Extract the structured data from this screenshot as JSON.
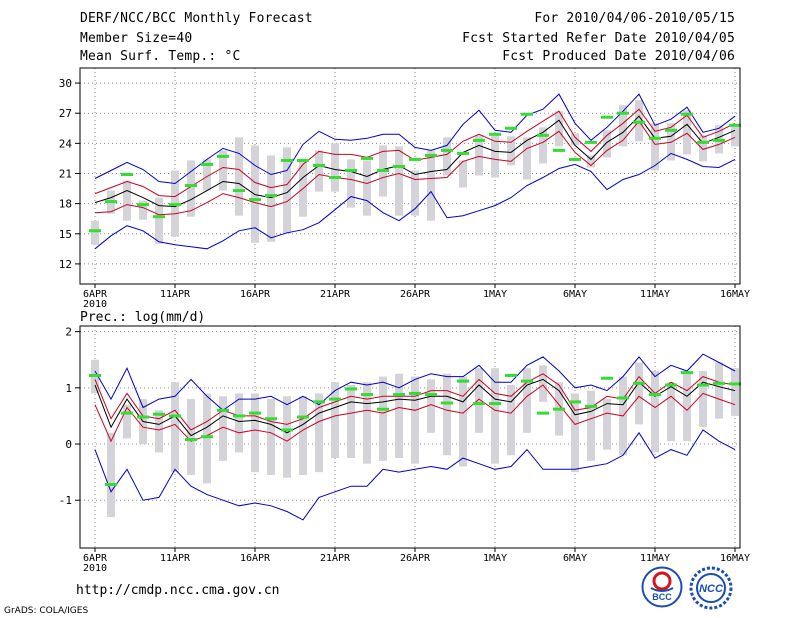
{
  "header": {
    "title": "DERF/NCC/BCC Monthly Forecast",
    "member_size": "Member Size=40",
    "variable1": "Mean Surf. Temp.: °C",
    "period": "For 2010/04/06-2010/05/15",
    "start_date": "Fcst Started Refer Date 2010/04/05",
    "produced_date": "Fcst Produced Date 2010/04/06"
  },
  "footer": {
    "url": "http://cmdp.ncc.cma.gov.cn",
    "grads": "GrADS: COLA/IGES",
    "logo1_text": "BCC",
    "logo2_text": "NCC"
  },
  "colors": {
    "envelope": "#0000cc",
    "spread": "#cc0022",
    "mean": "#000000",
    "box": "#d4d4d8",
    "median": "#33dd33",
    "grid": "#888888"
  },
  "chart_data": [
    {
      "type": "line",
      "title": "Mean Surf. Temp.: °C",
      "x_ticks": [
        "6APR",
        "11APR",
        "16APR",
        "21APR",
        "26APR",
        "1MAY",
        "6MAY",
        "11MAY",
        "16MAY"
      ],
      "x_tick_year": "2010",
      "ylim": [
        10,
        31.5
      ],
      "y_ticks": [
        12,
        15,
        18,
        21,
        24,
        27,
        30
      ],
      "days": 41,
      "series": [
        {
          "name": "max",
          "values": [
            20.5,
            21.3,
            22.1,
            21.4,
            20.2,
            20,
            21.2,
            22.4,
            23.5,
            23,
            21.8,
            20.9,
            21.3,
            23.9,
            25.2,
            24.4,
            24.3,
            24.5,
            24.9,
            24.9,
            23.6,
            23.3,
            23.8,
            25.9,
            27.3,
            25.3,
            25.1,
            26.8,
            27.4,
            28.9,
            26,
            24.3,
            25.6,
            27.2,
            28.9,
            25.8,
            26.4,
            27.6,
            25.1,
            25.5,
            26.7
          ]
        },
        {
          "name": "upper",
          "values": [
            19,
            19.6,
            20.2,
            19.7,
            18.8,
            18.7,
            19.7,
            20.7,
            21.6,
            21.4,
            20.1,
            19.6,
            19.9,
            21.9,
            23.2,
            22.9,
            22.9,
            22.6,
            23.2,
            23.3,
            22.3,
            22.6,
            22.9,
            24.2,
            24.9,
            24.2,
            24.1,
            25.2,
            26.2,
            27.2,
            24.6,
            23.2,
            24.8,
            26,
            27.4,
            25.2,
            25.6,
            26.8,
            24.6,
            25.2,
            26
          ]
        },
        {
          "name": "mean",
          "values": [
            18.1,
            18.6,
            19.3,
            18.6,
            17.8,
            17.7,
            18.4,
            19.3,
            20.2,
            20,
            18.9,
            18.6,
            19.1,
            20.6,
            21.8,
            21.4,
            21.2,
            20.7,
            21.4,
            21.8,
            20.9,
            21.2,
            21.4,
            23.1,
            23.8,
            23.2,
            23.1,
            24.3,
            25.1,
            26.3,
            23.8,
            22.4,
            24.1,
            25.1,
            26.7,
            24.5,
            24.7,
            25.9,
            24,
            24.6,
            25.3
          ]
        },
        {
          "name": "lower",
          "values": [
            17.1,
            17.2,
            17.9,
            17.6,
            16.9,
            17,
            17.3,
            18.1,
            19,
            18.6,
            18.1,
            17.7,
            18.2,
            19.5,
            20.9,
            20.6,
            20.4,
            20,
            20.6,
            21,
            20.4,
            20.5,
            20.6,
            22.2,
            22.7,
            22.4,
            22.2,
            23.5,
            24.1,
            25.2,
            23.1,
            21.8,
            23.3,
            24.3,
            26.2,
            23.9,
            24.1,
            25,
            23.4,
            23.9,
            24.6
          ]
        },
        {
          "name": "min",
          "values": [
            13.5,
            14.8,
            15.8,
            15.3,
            14.2,
            13.9,
            13.7,
            13.5,
            14.3,
            15.3,
            15.6,
            14.6,
            15.1,
            15.4,
            16.1,
            17.4,
            18.7,
            18.3,
            17.1,
            16.3,
            17.5,
            19.2,
            16.6,
            16.8,
            17.3,
            17.8,
            18.6,
            19.8,
            20.6,
            21.5,
            21.9,
            21.2,
            19.4,
            20.4,
            20.9,
            21.8,
            23,
            22.4,
            21.7,
            21.6,
            22.4
          ]
        },
        {
          "name": "box_top",
          "values": [
            16.3,
            19.3,
            20.3,
            18.3,
            18.6,
            21.3,
            22.3,
            22.4,
            23.3,
            24.6,
            23.8,
            22.8,
            23.6,
            22.2,
            23.3,
            24,
            22.4,
            22.3,
            23.8,
            23.7,
            21.3,
            23.3,
            24.6,
            22.3,
            24.8,
            24.8,
            24.7,
            24.6,
            25.6,
            27.2,
            25,
            22.8,
            25.3,
            27.8,
            28.3,
            26,
            26,
            27.3,
            24.8,
            25.8,
            25.9
          ]
        },
        {
          "name": "box_bottom",
          "values": [
            13.9,
            17,
            16.3,
            16.4,
            14,
            14.7,
            16.7,
            19.3,
            19.3,
            16.8,
            14.1,
            14.2,
            15,
            16.7,
            19.2,
            19.2,
            17.6,
            16.8,
            18.7,
            16.8,
            16.8,
            16.3,
            20.8,
            19.6,
            20.8,
            20.6,
            21.8,
            20.4,
            22,
            23.7,
            23.8,
            21.6,
            22.6,
            23.7,
            24.2,
            21.3,
            22.3,
            22.9,
            22.2,
            23,
            23.7
          ]
        },
        {
          "name": "median",
          "values": [
            15.3,
            18.2,
            20.9,
            17.9,
            16.7,
            17.9,
            19.8,
            21.9,
            22.7,
            19.3,
            18.4,
            18.8,
            22.3,
            22.3,
            21.8,
            20.6,
            21.3,
            22.5,
            21.3,
            21.7,
            22.4,
            22.8,
            23.3,
            23,
            24.3,
            24.9,
            25.5,
            26.9,
            24.8,
            23.3,
            22.4,
            24.1,
            26.6,
            27,
            26.1,
            24.5,
            25.3,
            26.9,
            24.1,
            24.3,
            25.8
          ]
        }
      ]
    },
    {
      "type": "line",
      "title": "Prec.: log(mm/d)",
      "x_ticks": [
        "6APR",
        "11APR",
        "16APR",
        "21APR",
        "26APR",
        "1MAY",
        "6MAY",
        "11MAY",
        "16MAY"
      ],
      "x_tick_year": "2010",
      "ylim": [
        -1.85,
        2.1
      ],
      "y_ticks": [
        -1,
        0,
        1,
        2
      ],
      "days": 41,
      "series": [
        {
          "name": "max",
          "values": [
            1.3,
            0.8,
            1.35,
            0.65,
            0.8,
            0.85,
            1.15,
            0.85,
            0.6,
            0.8,
            0.8,
            0.85,
            0.7,
            0.85,
            0.7,
            0.95,
            1.1,
            1.05,
            1.1,
            1,
            1.15,
            1.25,
            1.2,
            1.2,
            1.4,
            1.1,
            1.1,
            1.4,
            1.55,
            1.3,
            1,
            1.05,
            0.95,
            1.2,
            1.55,
            1.2,
            1.4,
            1.3,
            1.6,
            1.45,
            1.3
          ]
        },
        {
          "name": "upper",
          "values": [
            1.15,
            0.45,
            0.9,
            0.5,
            0.45,
            0.6,
            0.25,
            0.4,
            0.6,
            0.5,
            0.5,
            0.4,
            0.35,
            0.45,
            0.65,
            0.75,
            0.85,
            0.8,
            0.85,
            0.85,
            0.85,
            0.95,
            0.95,
            0.85,
            1.15,
            0.9,
            0.85,
            1.1,
            1.25,
            1.05,
            0.6,
            0.65,
            0.85,
            0.8,
            1.2,
            0.9,
            1.1,
            0.95,
            1.2,
            1.1,
            1.05
          ]
        },
        {
          "name": "mean",
          "values": [
            1.05,
            0.3,
            0.8,
            0.4,
            0.35,
            0.5,
            0.15,
            0.3,
            0.5,
            0.4,
            0.42,
            0.35,
            0.2,
            0.35,
            0.55,
            0.65,
            0.75,
            0.72,
            0.75,
            0.8,
            0.78,
            0.85,
            0.85,
            0.75,
            1.05,
            0.8,
            0.75,
            1.05,
            1.15,
            0.95,
            0.52,
            0.58,
            0.72,
            0.7,
            1.1,
            0.85,
            1.02,
            0.85,
            1.1,
            1.02,
            0.95
          ]
        },
        {
          "name": "lower",
          "values": [
            0.7,
            0.05,
            0.65,
            0.3,
            0.25,
            0.35,
            0.05,
            0.15,
            0.3,
            0.2,
            0.25,
            0.2,
            0.05,
            0.25,
            0.4,
            0.5,
            0.55,
            0.6,
            0.55,
            0.65,
            0.6,
            0.7,
            0.6,
            0.55,
            0.8,
            0.6,
            0.55,
            0.85,
            1.05,
            0.7,
            0.35,
            0.45,
            0.55,
            0.5,
            0.85,
            0.65,
            0.85,
            0.6,
            0.9,
            0.8,
            0.7
          ]
        },
        {
          "name": "min",
          "values": [
            -0.1,
            -0.85,
            -0.45,
            -1,
            -0.95,
            -0.45,
            -0.75,
            -0.9,
            -1,
            -1.1,
            -1.05,
            -1.1,
            -1.2,
            -1.35,
            -0.95,
            -0.85,
            -0.75,
            -0.75,
            -0.45,
            -0.5,
            -0.45,
            -0.4,
            -0.45,
            -0.25,
            -0.35,
            -0.45,
            -0.4,
            -0.1,
            -0.45,
            -0.45,
            -0.45,
            -0.4,
            -0.35,
            -0.2,
            0.2,
            -0.25,
            -0.1,
            -0.2,
            0.25,
            0.05,
            -0.1
          ]
        },
        {
          "name": "box_top",
          "values": [
            1.5,
            0.2,
            0.7,
            0.8,
            0.6,
            1.1,
            0.8,
            0.9,
            0.85,
            0.9,
            0.9,
            0.8,
            0.85,
            0.85,
            0.9,
            1.1,
            1.05,
            1.1,
            1.2,
            1.25,
            1.2,
            1.15,
            1.25,
            1.2,
            1.35,
            1.35,
            1.05,
            1.35,
            1.4,
            1.1,
            0.9,
            0.95,
            0.8,
            1.2,
            1.45,
            1.3,
            1.1,
            1.25,
            1.3,
            1.45,
            1.35
          ]
        },
        {
          "name": "box_bottom",
          "values": [
            0.9,
            -1.3,
            0.1,
            0,
            -0.15,
            -0.5,
            -0.55,
            -0.7,
            -0.3,
            -0.15,
            -0.5,
            -0.55,
            -0.6,
            -0.55,
            -0.5,
            -0.25,
            -0.25,
            -0.35,
            -0.3,
            -0.25,
            -0.35,
            0.2,
            -0.2,
            -0.4,
            0.2,
            -0.35,
            -0.2,
            0.2,
            0.75,
            0.15,
            -0.5,
            -0.3,
            -0.1,
            -0.2,
            0.35,
            -0.15,
            0.05,
            0.05,
            0.3,
            0.45,
            0.5
          ]
        },
        {
          "name": "median",
          "values": [
            1.22,
            -0.72,
            0.55,
            0.48,
            0.53,
            0.5,
            0.08,
            0.13,
            0.6,
            0.5,
            0.55,
            0.45,
            0.25,
            0.48,
            0.75,
            0.8,
            0.98,
            0.88,
            0.62,
            0.88,
            0.9,
            0.88,
            0.73,
            1.12,
            0.72,
            0.72,
            1.22,
            1.12,
            0.55,
            0.62,
            0.75,
            0.67,
            1.17,
            0.82,
            1.08,
            0.88,
            1.05,
            1.27,
            1.05,
            1.08,
            1.07
          ]
        }
      ]
    }
  ]
}
